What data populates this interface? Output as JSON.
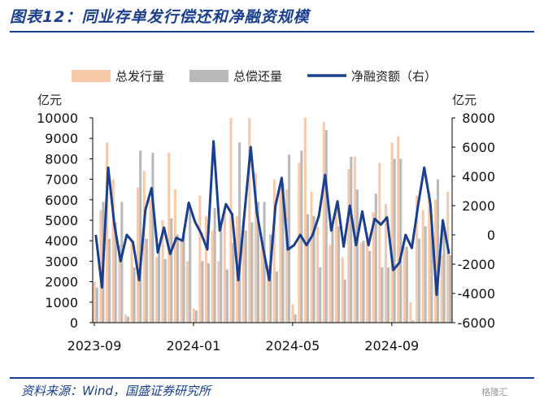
{
  "figure": {
    "title": "图表12：同业存单发行偿还和净融资规模",
    "source": "资料来源：Wind，国盛证券研究所",
    "watermark": "格隆汇"
  },
  "chart_data": {
    "type": "bar",
    "legend_position": "top",
    "xlabel": "",
    "ylabel": "亿元",
    "ylabel_right": "亿元",
    "ylim": [
      0,
      10000
    ],
    "ylim_right": [
      -6000,
      8000
    ],
    "yticks": [
      0,
      1000,
      2000,
      3000,
      4000,
      5000,
      6000,
      7000,
      8000,
      9000,
      10000
    ],
    "yticks_right": [
      -6000,
      -4000,
      -2000,
      0,
      2000,
      4000,
      6000,
      8000
    ],
    "x_tick_labels": [
      {
        "index": 0,
        "label": "2023-09"
      },
      {
        "index": 16,
        "label": "2024-01"
      },
      {
        "index": 32,
        "label": "2024-05"
      },
      {
        "index": 48,
        "label": "2024-09"
      }
    ],
    "colors": {
      "issuance": "#f8c9a8",
      "repayment": "#b9b9b9",
      "net": "#1a3f8f"
    },
    "series": [
      {
        "name": "总发行量",
        "axis": "left",
        "type": "bar",
        "values": [
          2000,
          5500,
          8800,
          7000,
          3800,
          400,
          4000,
          6600,
          7400,
          6000,
          3200,
          5000,
          8300,
          6500,
          4000,
          3000,
          700,
          6200,
          5200,
          4500,
          3000,
          5400,
          10000,
          5200,
          5000,
          10000,
          7300,
          4000,
          2800,
          7000,
          6900,
          6500,
          900,
          7800,
          10000,
          6400,
          4700,
          9800,
          3800,
          5600,
          3200,
          7500,
          8100,
          3900,
          4400,
          5400,
          7800,
          5800,
          8800,
          9100,
          3700,
          1000,
          6200,
          5500,
          6400,
          6000,
          3300,
          6400
        ]
      },
      {
        "name": "总偿还量",
        "axis": "left",
        "type": "bar",
        "values": [
          1700,
          5900,
          4100,
          4900,
          5900,
          300,
          2700,
          8400,
          4100,
          8300,
          3600,
          3100,
          5100,
          4300,
          4400,
          5600,
          600,
          3000,
          2900,
          5600,
          4800,
          2600,
          3900,
          8800,
          4500,
          4900,
          5900,
          5900,
          4300,
          2500,
          6800,
          8200,
          400,
          8400,
          5300,
          5200,
          2700,
          9400,
          4700,
          4700,
          2100,
          8100,
          6500,
          4000,
          3500,
          6300,
          2700,
          2700,
          8000,
          8000,
          3700,
          100,
          4100,
          4700,
          4600,
          7000,
          4500,
          3300
        ]
      },
      {
        "name": "净融资额（右）",
        "axis": "right",
        "type": "line",
        "values": [
          0,
          -3600,
          4600,
          700,
          -1800,
          0,
          -500,
          -3100,
          1700,
          3200,
          -1200,
          500,
          -1300,
          -200,
          -400,
          2200,
          900,
          100,
          -1000,
          6400,
          300,
          2100,
          1400,
          -3100,
          1500,
          6000,
          1500,
          -900,
          -3100,
          2000,
          3900,
          -1000,
          -700,
          0,
          -700,
          0,
          1300,
          4100,
          300,
          2300,
          -800,
          2000,
          -700,
          1600,
          -700,
          1100,
          700,
          1200,
          -2400,
          -1900,
          0,
          -900,
          2000,
          4600,
          2100,
          -4100,
          1000,
          -1300
        ]
      }
    ]
  }
}
